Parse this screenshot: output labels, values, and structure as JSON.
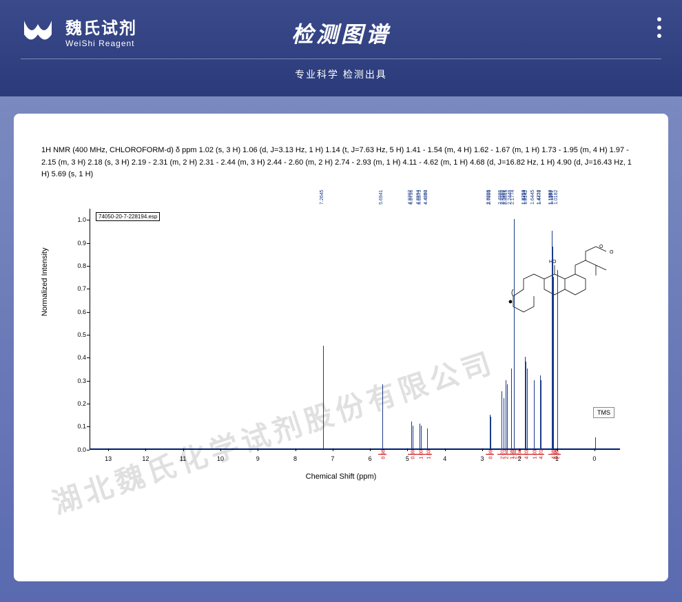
{
  "header": {
    "logo_cn": "魏氏试剂",
    "logo_en": "WeiShi Reagent",
    "title": "检测图谱",
    "subtitle": "专业科学  检测出具"
  },
  "nmr_description": "1H NMR (400 MHz, CHLOROFORM-d) δ ppm 1.02 (s, 3 H) 1.06 (d, J=3.13 Hz, 1 H) 1.14 (t, J=7.63 Hz, 5 H) 1.41 - 1.54 (m, 4 H) 1.62 - 1.67 (m, 1 H) 1.73 - 1.95 (m, 4 H) 1.97 - 2.15 (m, 3 H) 2.18 (s, 3 H) 2.19 - 2.31 (m, 2 H) 2.31 - 2.44 (m, 3 H) 2.44 - 2.60 (m, 2 H) 2.74 - 2.93 (m, 1 H) 4.11 - 4.62 (m, 1 H) 4.68 (d, J=16.82 Hz, 1 H) 4.90 (d, J=16.43 Hz, 1 H) 5.69 (s, 1 H)",
  "spectrum": {
    "esp_file": "74050-20-7-228194.esp",
    "tms_label": "TMS",
    "ylabel": "Normalized Intensity",
    "xlabel": "Chemical Shift (ppm)",
    "xlim": [
      -0.5,
      13.5
    ],
    "ylim": [
      0,
      1.05
    ],
    "yticks": [
      0,
      0.1,
      0.2,
      0.3,
      0.4,
      0.5,
      0.6,
      0.7,
      0.8,
      0.9,
      1.0
    ],
    "xticks": [
      0,
      1,
      2,
      3,
      4,
      5,
      6,
      7,
      8,
      9,
      10,
      11,
      12,
      13
    ],
    "peak_color": "#1a3a8a",
    "integral_color": "#c00000",
    "background_color": "#ffffff",
    "peaks": [
      {
        "ppm": 7.2645,
        "height": 0.45,
        "label": "7.2645"
      },
      {
        "ppm": 5.6941,
        "height": 0.28,
        "label": "5.6941"
      },
      {
        "ppm": 4.9207,
        "height": 0.12,
        "label": "4.9207"
      },
      {
        "ppm": 4.8796,
        "height": 0.1,
        "label": "4.8796"
      },
      {
        "ppm": 4.6994,
        "height": 0.11,
        "label": "4.6994"
      },
      {
        "ppm": 4.6573,
        "height": 0.1,
        "label": "4.6573"
      },
      {
        "ppm": 4.4889,
        "height": 0.09,
        "label": "4.4889"
      },
      {
        "ppm": 4.485,
        "height": 0.08,
        "label": "4.4850"
      },
      {
        "ppm": 2.8206,
        "height": 0.15,
        "label": "2.8206"
      },
      {
        "ppm": 2.7893,
        "height": 0.14,
        "label": "2.7893"
      },
      {
        "ppm": 2.4986,
        "height": 0.25,
        "label": "2.4986"
      },
      {
        "ppm": 2.4565,
        "height": 0.22,
        "label": "2.4565"
      },
      {
        "ppm": 2.3901,
        "height": 0.3,
        "label": "2.3901"
      },
      {
        "ppm": 2.3515,
        "height": 0.28,
        "label": "2.3515"
      },
      {
        "ppm": 2.2448,
        "height": 0.35,
        "label": "2.2448"
      },
      {
        "ppm": 2.1774,
        "height": 1.0,
        "label": "2.1774"
      },
      {
        "ppm": 1.8759,
        "height": 0.4,
        "label": "1.8759"
      },
      {
        "ppm": 1.8494,
        "height": 0.38,
        "label": "1.8494"
      },
      {
        "ppm": 1.8142,
        "height": 0.35,
        "label": "1.8142"
      },
      {
        "ppm": 1.6445,
        "height": 0.3,
        "label": "1.6445"
      },
      {
        "ppm": 1.4712,
        "height": 0.32,
        "label": "1.4712"
      },
      {
        "ppm": 1.447,
        "height": 0.3,
        "label": "1.4470"
      },
      {
        "ppm": 1.1553,
        "height": 0.95,
        "label": "1.1553"
      },
      {
        "ppm": 1.1367,
        "height": 0.88,
        "label": "1.1367"
      },
      {
        "ppm": 1.1171,
        "height": 0.75,
        "label": "1.1171"
      },
      {
        "ppm": 1.0182,
        "height": 0.78,
        "label": "1.0182"
      },
      {
        "ppm": 0.0,
        "height": 0.05,
        "label": ""
      }
    ],
    "integrals": [
      {
        "ppm": 5.69,
        "value": "0.98"
      },
      {
        "ppm": 4.9,
        "value": "0.99"
      },
      {
        "ppm": 4.68,
        "value": "1.00"
      },
      {
        "ppm": 4.48,
        "value": "1.03"
      },
      {
        "ppm": 2.82,
        "value": "0.99"
      },
      {
        "ppm": 2.5,
        "value": "2.01"
      },
      {
        "ppm": 2.39,
        "value": "2.94"
      },
      {
        "ppm": 2.24,
        "value": "1.98"
      },
      {
        "ppm": 2.18,
        "value": "2.94"
      },
      {
        "ppm": 2.05,
        "value": "3.04"
      },
      {
        "ppm": 1.85,
        "value": "4.03"
      },
      {
        "ppm": 1.64,
        "value": "1.03"
      },
      {
        "ppm": 1.47,
        "value": "4.01"
      },
      {
        "ppm": 1.14,
        "value": "4.98"
      },
      {
        "ppm": 1.06,
        "value": "0.96"
      },
      {
        "ppm": 1.02,
        "value": "2.97"
      }
    ]
  },
  "watermark": "湖北魏氏化学试剂股份有限公司"
}
